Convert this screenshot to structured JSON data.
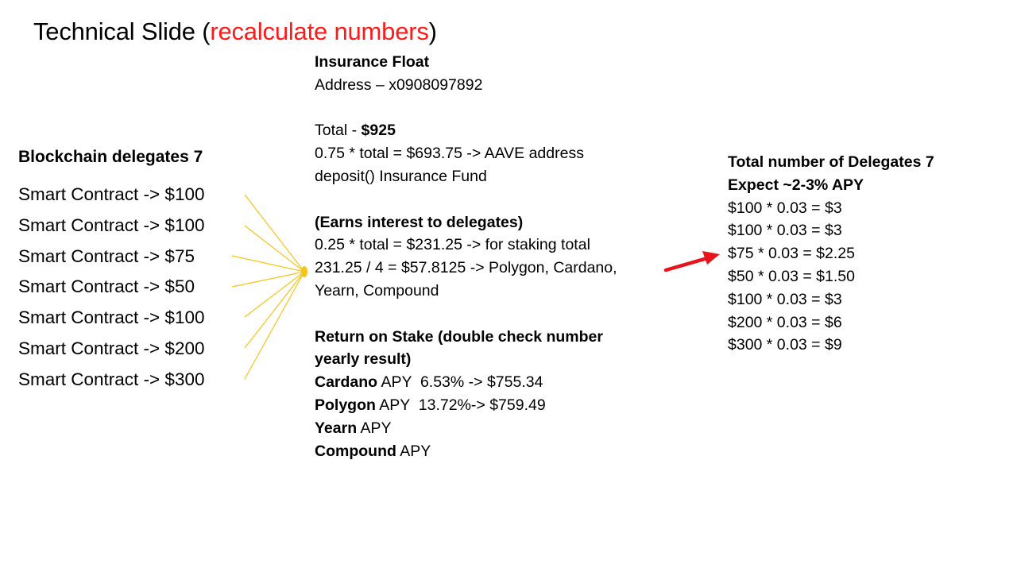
{
  "title": {
    "prefix": "Technical Slide (",
    "highlight": "recalculate numbers",
    "suffix": ")",
    "highlight_color": "#ff1a1a"
  },
  "left": {
    "heading": "Blockchain delegates 7",
    "items": [
      "Smart Contract -> $100",
      "Smart Contract -> $100",
      "Smart Contract -> $75",
      "Smart Contract -> $50",
      "Smart Contract -> $100",
      "Smart Contract -> $200",
      "Smart Contract -> $300"
    ]
  },
  "middle": {
    "heading": "Insurance Float",
    "address": "Address – x0908097892",
    "total_label": "Total - ",
    "total_value": "$925",
    "aave_line": "0.75 * total = $693.75 -> AAVE address",
    "deposit_line": "deposit() Insurance Fund",
    "earns_heading": "(Earns interest to delegates)",
    "staking_line": "0.25 * total = $231.25 -> for staking total",
    "split_line_1": "231.25 / 4 = $57.8125 -> Polygon, Cardano,",
    "split_line_2": "Yearn, Compound",
    "return_heading_1": "Return on Stake (double check number",
    "return_heading_2": "yearly result)",
    "stakes": [
      {
        "name": "Cardano",
        "detail": " APY  6.53% -> $755.34"
      },
      {
        "name": "Polygon",
        "detail": " APY  13.72%-> $759.49"
      },
      {
        "name": "Yearn",
        "detail": " APY"
      },
      {
        "name": "Compound",
        "detail": " APY"
      }
    ]
  },
  "right": {
    "heading_1": "Total number of Delegates 7",
    "heading_2": "Expect ~2-3% APY",
    "lines": [
      "$100 * 0.03 = $3",
      "$100 * 0.03 = $3",
      "$75 * 0.03 = $2.25",
      "$50 * 0.03 = $1.50",
      "$100 * 0.03 = $3",
      "$200 * 0.03 = $6",
      "$300 * 0.03 = $9"
    ]
  },
  "colors": {
    "fan_lines": "#f5c518",
    "arrow": "#e8141c"
  }
}
